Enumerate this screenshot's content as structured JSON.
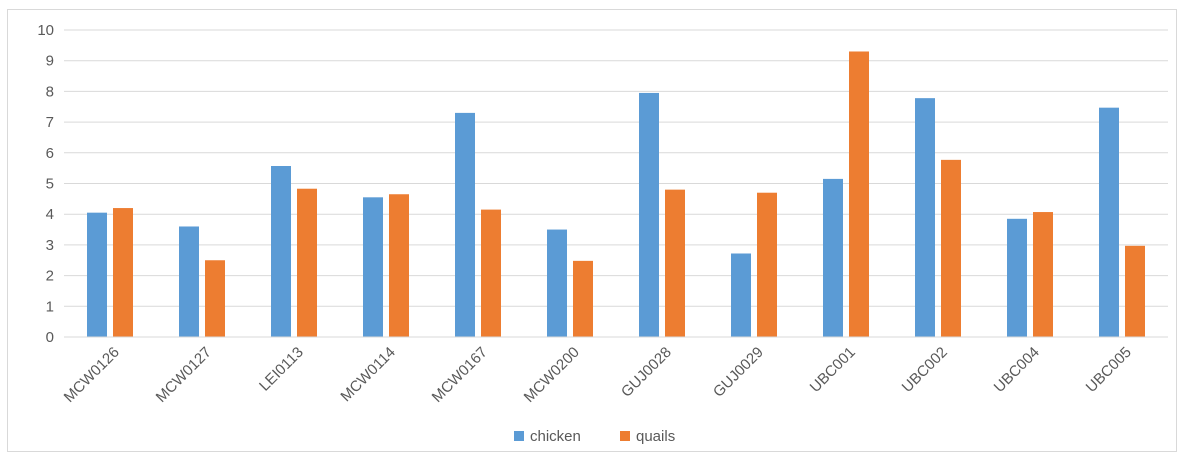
{
  "chart_data": {
    "type": "bar",
    "categories": [
      "MCW0126",
      "MCW0127",
      "LEI0113",
      "MCW0114",
      "MCW0167",
      "MCW0200",
      "GUJ0028",
      "GUJ0029",
      "UBC001",
      "UBC002",
      "UBC004",
      "UBC005"
    ],
    "series": [
      {
        "name": "chicken",
        "color": "#5B9BD5",
        "values": [
          4.05,
          3.6,
          5.57,
          4.55,
          7.3,
          3.5,
          7.95,
          2.72,
          5.15,
          7.78,
          3.85,
          7.47
        ]
      },
      {
        "name": "quails",
        "color": "#ED7D31",
        "values": [
          4.2,
          2.5,
          4.83,
          4.65,
          4.15,
          2.48,
          4.8,
          4.7,
          9.3,
          5.77,
          4.07,
          2.97
        ]
      }
    ],
    "y_ticks": [
      "0",
      "1",
      "2",
      "3",
      "4",
      "5",
      "6",
      "7",
      "8",
      "9",
      "10"
    ],
    "ylim": [
      0,
      10
    ],
    "grid": true,
    "legend_position": "bottom",
    "title": "",
    "xlabel": "",
    "ylabel": ""
  }
}
